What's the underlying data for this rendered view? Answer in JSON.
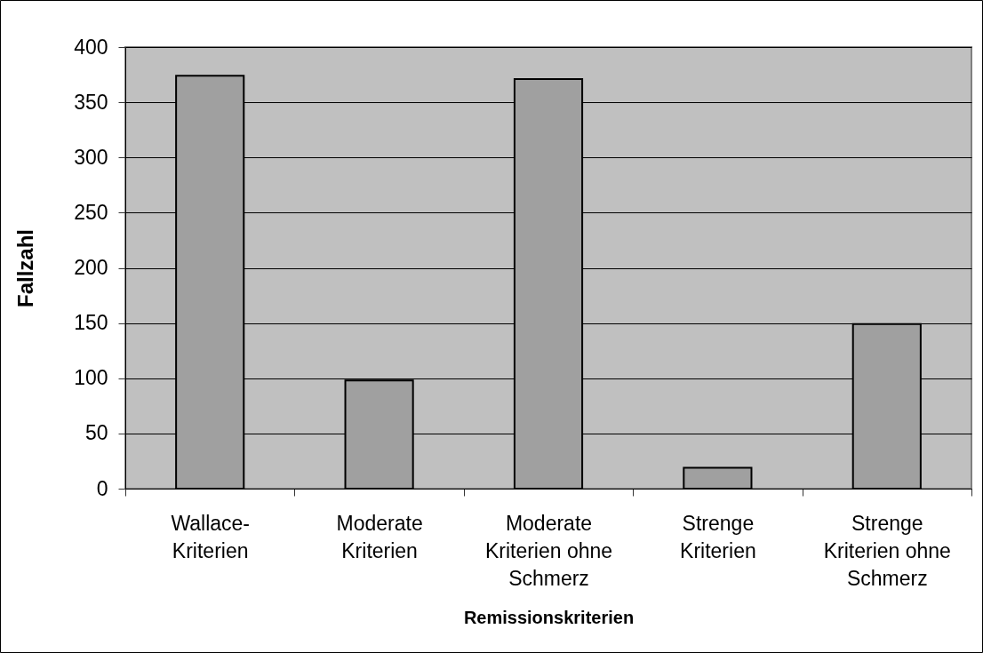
{
  "chart_data": {
    "type": "bar",
    "xlabel": "Remissionskriterien",
    "ylabel": "Fallzahl",
    "categories": [
      "Wallace-Kriterien",
      "Moderate Kriterien",
      "Moderate Kriterien ohne Schmerz",
      "Strenge Kriterien",
      "Strenge Kriterien ohne Schmerz"
    ],
    "values": [
      374,
      98,
      371,
      19,
      149
    ],
    "color": "#a0a0a0",
    "ylim": [
      0,
      400
    ],
    "yticks": [
      0,
      50,
      100,
      150,
      200,
      250,
      300,
      350,
      400
    ],
    "grid": "y"
  }
}
